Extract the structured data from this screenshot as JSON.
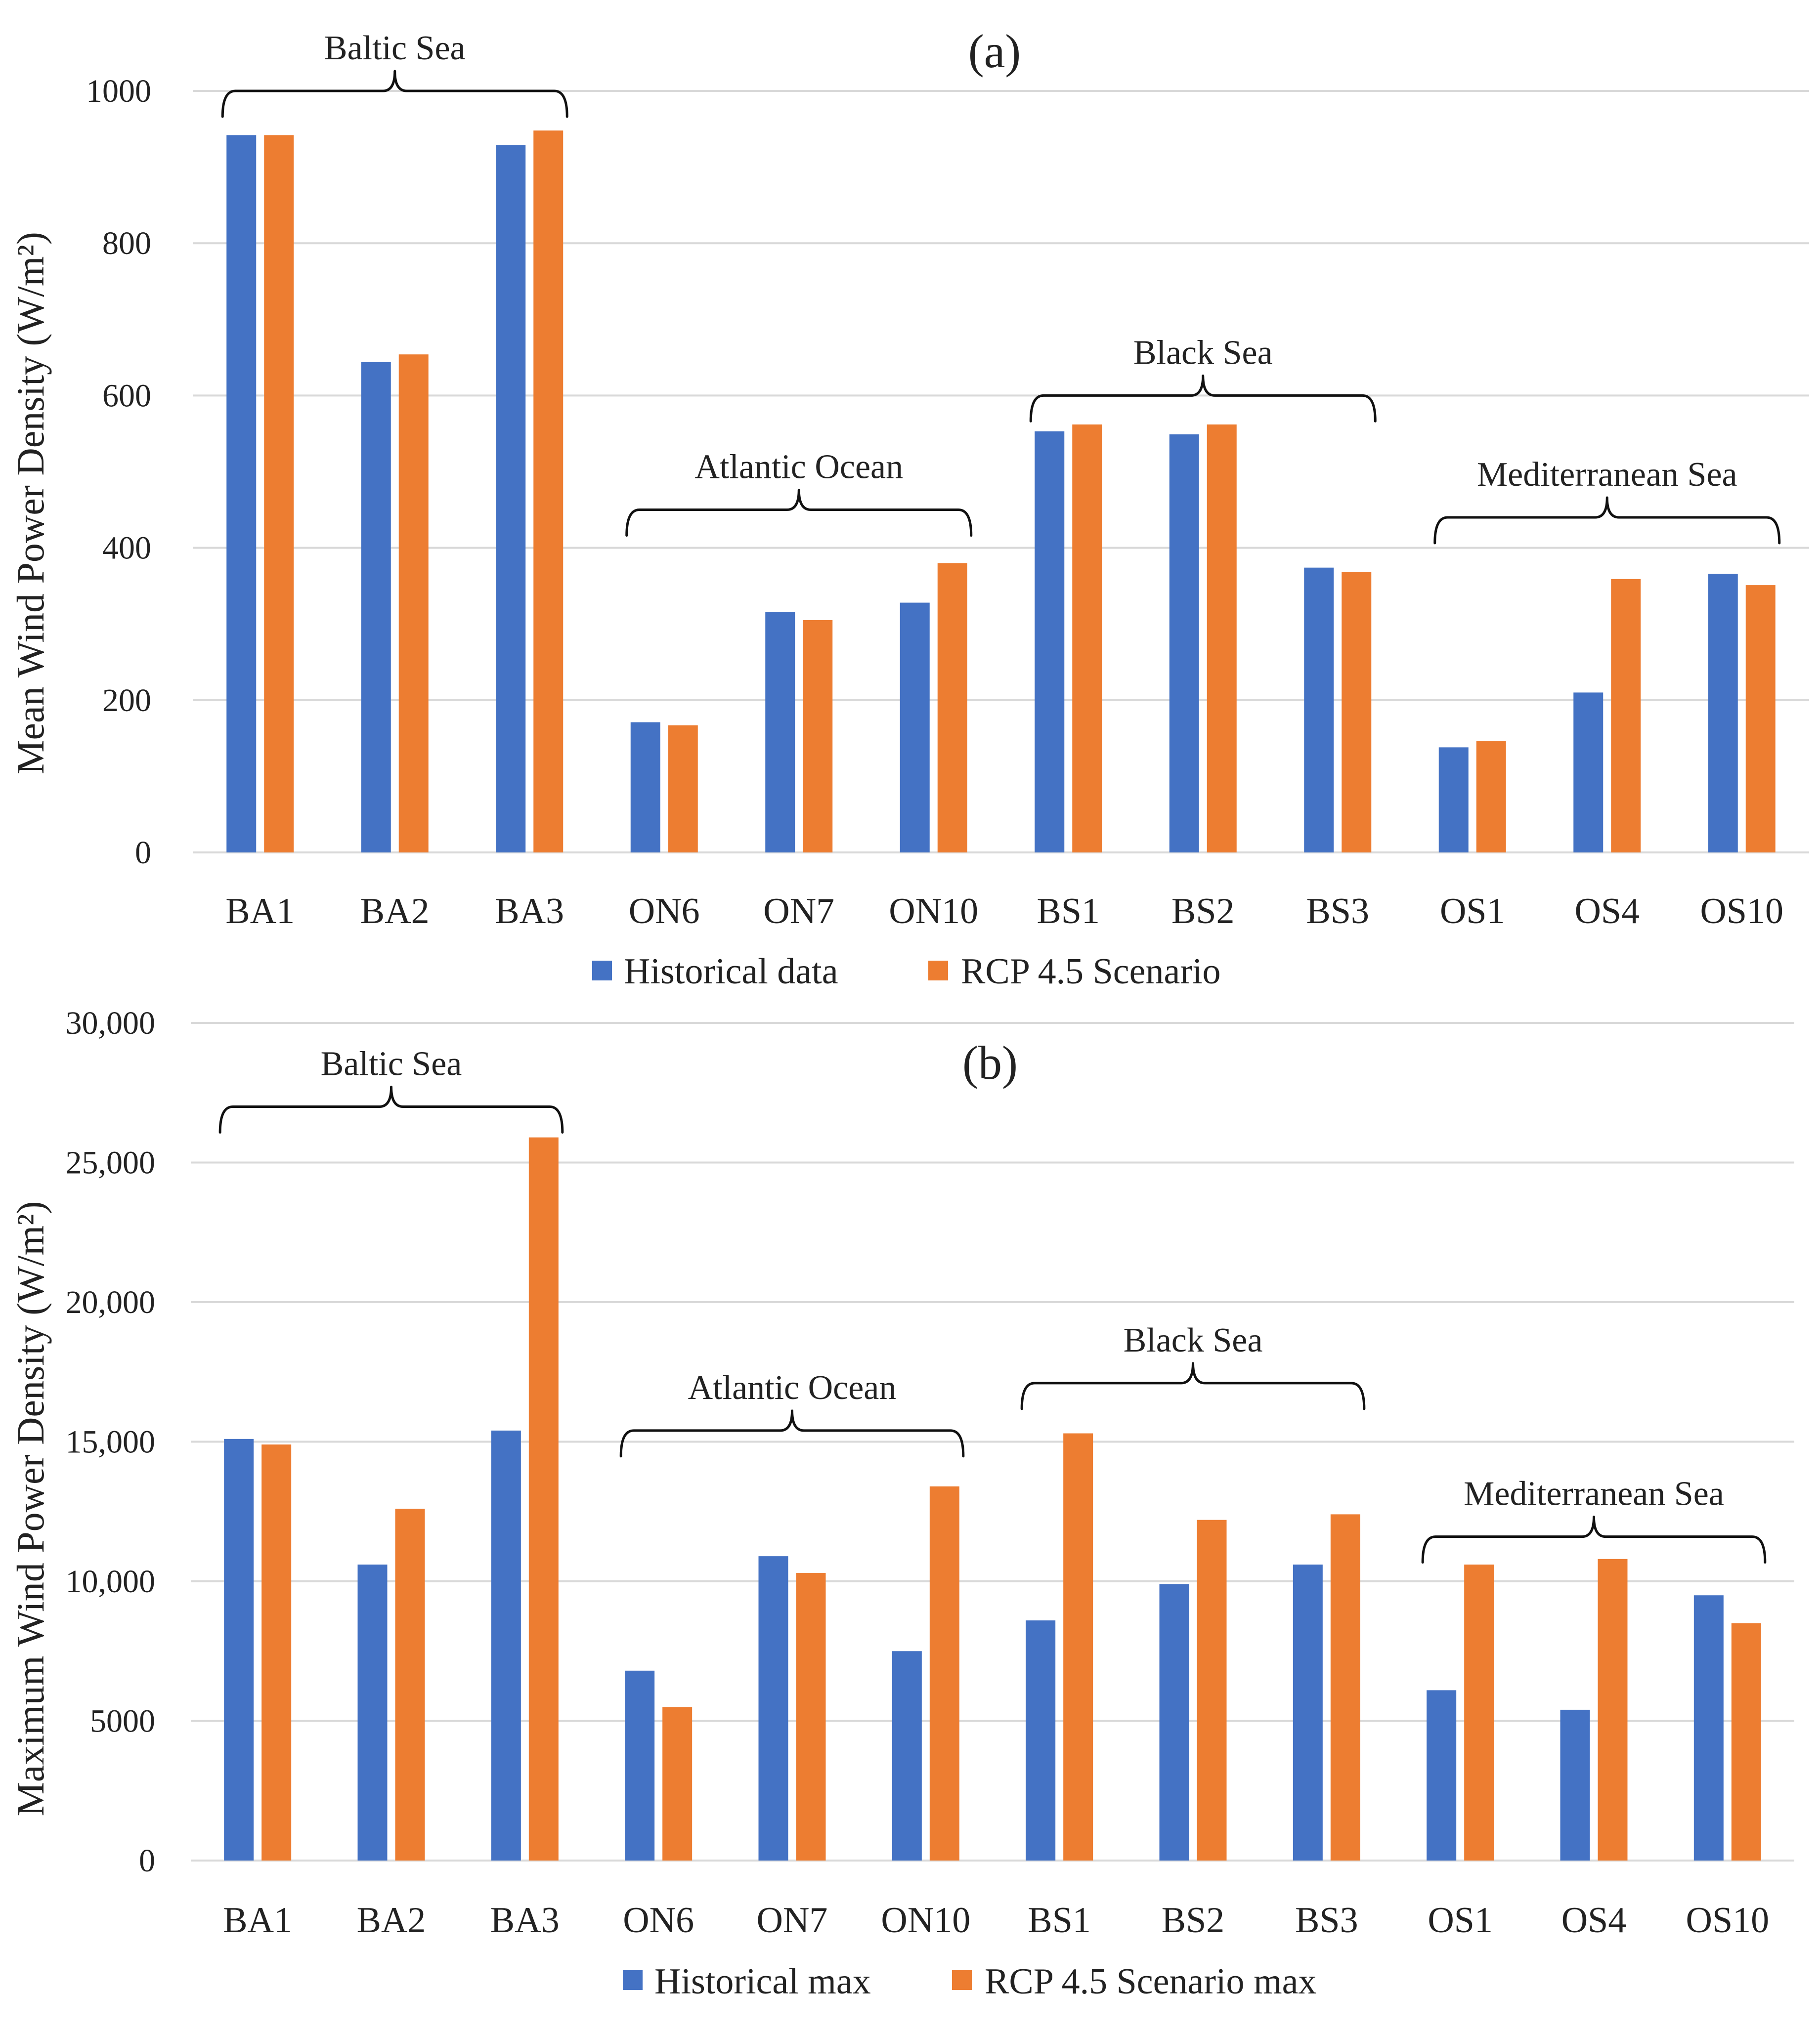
{
  "colors": {
    "historical": "#4472C4",
    "scenario": "#ED7D31"
  },
  "chart_data": [
    {
      "type": "bar",
      "panel_label": "(a)",
      "ylabel": "Mean Wind Power Density (W/m²)",
      "ylim": [
        0,
        1000
      ],
      "yticks": [
        0,
        200,
        400,
        600,
        800,
        1000
      ],
      "ytick_labels": [
        "0",
        "200",
        "400",
        "600",
        "800",
        "1000"
      ],
      "grid": true,
      "categories": [
        "BA1",
        "BA2",
        "BA3",
        "ON6",
        "ON7",
        "ON10",
        "BS1",
        "BS2",
        "BS3",
        "OS1",
        "OS4",
        "OS10"
      ],
      "series": [
        {
          "name": "Historical data",
          "values": [
            942,
            644,
            929,
            171,
            316,
            328,
            553,
            549,
            374,
            138,
            210,
            366
          ]
        },
        {
          "name": "RCP 4.5 Scenario",
          "values": [
            942,
            654,
            948,
            167,
            305,
            380,
            562,
            562,
            368,
            146,
            359,
            351
          ]
        }
      ],
      "groups": [
        {
          "label": "Baltic Sea",
          "level": 1000
        },
        {
          "label": "Atlantic Ocean",
          "level": 450
        },
        {
          "label": "Black Sea",
          "level": 600
        },
        {
          "label": "Mediterranean  Sea",
          "level": 440
        }
      ],
      "legend_position": "bottom-center"
    },
    {
      "type": "bar",
      "panel_label": "(b)",
      "ylabel": "Maximum Wind Power Density (W/m²)",
      "ylim": [
        0,
        30000
      ],
      "yticks": [
        0,
        5000,
        10000,
        15000,
        20000,
        25000,
        30000
      ],
      "ytick_labels": [
        "0",
        "5000",
        "10,000",
        "15,000",
        "20,000",
        "25,000",
        "30,000"
      ],
      "grid": true,
      "categories": [
        "BA1",
        "BA2",
        "BA3",
        "ON6",
        "ON7",
        "ON10",
        "BS1",
        "BS2",
        "BS3",
        "OS1",
        "OS4",
        "OS10"
      ],
      "series": [
        {
          "name": "Historical max",
          "values": [
            15100,
            10600,
            15400,
            6800,
            10900,
            7500,
            8600,
            9900,
            10600,
            6100,
            5400,
            9500
          ]
        },
        {
          "name": "RCP 4.5 Scenario max",
          "values": [
            14900,
            12600,
            25900,
            5500,
            10300,
            13400,
            15300,
            12200,
            12400,
            10600,
            10800,
            8500
          ]
        }
      ],
      "groups": [
        {
          "label": "Baltic Sea",
          "level": 27000
        },
        {
          "label": "Atlantic Ocean",
          "level": 15400
        },
        {
          "label": "Black Sea",
          "level": 17100
        },
        {
          "label": "Mediterranean  Sea",
          "level": 11600
        }
      ],
      "legend_position": "bottom-center"
    }
  ]
}
